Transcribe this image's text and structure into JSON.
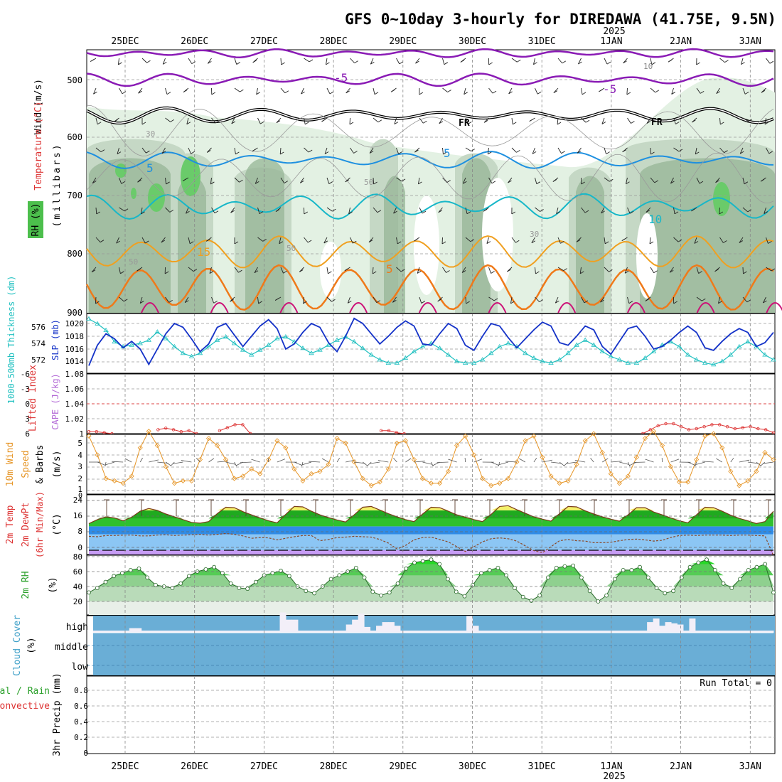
{
  "title": "GFS 0~10day 3-hourly for DIREDAWA (41.75E, 9.5N)",
  "year_label": "2025",
  "date_labels": [
    "25DEC",
    "26DEC",
    "27DEC",
    "28DEC",
    "29DEC",
    "30DEC",
    "31DEC",
    "1JAN",
    "2JAN",
    "3JAN"
  ],
  "run_total_label": "Run Total = 0",
  "colors": {
    "rh_light": "#e3f1e3",
    "rh_mid": "#c5d8c5",
    "rh_dark": "#95b595",
    "rh_green": "#6acb6a",
    "t_purple": "#8a1bb5",
    "t_black": "#000000",
    "t_blue": "#1e90e0",
    "t_cyan": "#17b7c8",
    "t_orange_light": "#f0a020",
    "t_orange": "#ef7a1a",
    "t_magenta": "#cc1177",
    "slp": "#1432c8",
    "thick": "#20c0c0",
    "li": "#dd3333",
    "wind": "#e69526",
    "temp_yellow": "#f3f06a",
    "temp_green": "#2fc02f",
    "dew_blue": "#2f8ce8",
    "freeze_purple": "#c79cf5",
    "rh2_green": "#26d926",
    "cloud": "#6aaed6"
  },
  "panels": {
    "upper": {
      "ylabel_wind": "Wind (m/s)",
      "ylabel_temp": "Temperature (°C)",
      "ylabel_mb": "(millibars)",
      "ylabel_rh": "RH (%)",
      "yticks": [
        "500",
        "600",
        "700",
        "800",
        "900"
      ],
      "contour_labels": [
        "10",
        "-5",
        "-5",
        "FR",
        "FR",
        "30",
        "5",
        "5",
        "50",
        "30",
        "50",
        "50",
        "10",
        "15",
        "5"
      ]
    },
    "slp": {
      "ylabel_thick": "1000-500mb Thickness (dm)",
      "ylabel_slp": "SLP (mb)",
      "left_ticks": [
        "576",
        "574",
        "572"
      ],
      "right_ticks": [
        "1020",
        "1018",
        "1016",
        "1014"
      ]
    },
    "li": {
      "ylabel_li": "Lifted Index",
      "ylabel_cape": "CAPE (J/kg)",
      "left_ticks": [
        "-6",
        "-3",
        "0",
        "3",
        "6"
      ],
      "right_ticks": [
        "1.08",
        "1.06",
        "1.04",
        "1.02",
        "1"
      ]
    },
    "wind10": {
      "ylabel_a": "10m Wind",
      "ylabel_b": "Speed",
      "ylabel_c": "& Barbs",
      "ylabel_unit": "(m/s)",
      "ticks": [
        "5",
        "4",
        "3",
        "2",
        "1",
        "0"
      ]
    },
    "temp2": {
      "ylabel_a": "2m Temp",
      "ylabel_b": "2m DewPt",
      "ylabel_c": "(6hr Min/Max)",
      "ylabel_unit": "(°C)",
      "ticks": [
        "24",
        "16",
        "8",
        "0"
      ]
    },
    "rh2": {
      "ylabel_a": "2m RH",
      "ylabel_unit": "(%)",
      "ticks": [
        "80",
        "60",
        "40",
        "20"
      ]
    },
    "cloud": {
      "ylabel_a": "Cloud Cover",
      "ylabel_unit": "(%)",
      "levels": [
        "high",
        "middle",
        "low"
      ]
    },
    "precip": {
      "ylabel_a": "Total / Rain",
      "ylabel_b": "Convective",
      "ylabel_c": "3hr Precip (mm)",
      "ticks": [
        "0.8",
        "0.6",
        "0.4",
        "0.2",
        "0"
      ]
    }
  },
  "chart_data": {
    "type": "line",
    "x_unit": "3-hourly steps from 25DEC 00Z",
    "slp_mb": [
      1013.4,
      1016.6,
      1018.4,
      1017.6,
      1016.2,
      1017.2,
      1016.0,
      1013.6,
      1016.0,
      1018.4,
      1020.0,
      1019.4,
      1017.6,
      1015.6,
      1016.8,
      1019.4,
      1020.0,
      1018.2,
      1016.4,
      1018.0,
      1019.6,
      1020.6,
      1019.2,
      1016.0,
      1016.8,
      1018.6,
      1020.0,
      1019.4,
      1017.0,
      1015.6,
      1018.0,
      1020.8,
      1020.0,
      1018.4,
      1016.8,
      1018.0,
      1019.4,
      1020.4,
      1019.6,
      1016.8,
      1016.6,
      1018.4,
      1020.0,
      1019.2,
      1016.6,
      1015.8,
      1018.0,
      1020.0,
      1019.6,
      1017.8,
      1016.2,
      1017.6,
      1019.0,
      1020.2,
      1019.6,
      1017.0,
      1016.6,
      1018.0,
      1019.6,
      1019.0,
      1016.4,
      1015.2,
      1017.2,
      1019.2,
      1019.6,
      1018.0,
      1016.0,
      1016.4,
      1017.4,
      1018.6,
      1019.6,
      1018.6,
      1016.2,
      1015.8,
      1017.2,
      1018.4,
      1019.2,
      1018.6,
      1016.4,
      1017.0,
      1018.6
    ],
    "thickness_dm": [
      577.0,
      576.4,
      575.6,
      574.2,
      573.6,
      573.8,
      574.0,
      574.4,
      575.4,
      574.6,
      573.6,
      572.8,
      572.4,
      572.8,
      573.6,
      574.4,
      574.8,
      574.0,
      573.2,
      572.6,
      573.2,
      573.8,
      574.6,
      574.8,
      574.2,
      573.4,
      572.8,
      573.2,
      573.8,
      574.4,
      574.8,
      574.2,
      573.4,
      572.6,
      572.0,
      571.6,
      571.6,
      572.2,
      573.0,
      573.6,
      574.0,
      573.4,
      572.6,
      571.8,
      571.6,
      571.6,
      572.0,
      572.8,
      573.6,
      574.0,
      573.6,
      572.8,
      572.2,
      571.8,
      571.6,
      572.0,
      572.8,
      573.8,
      574.4,
      573.8,
      573.0,
      572.4,
      572.0,
      571.6,
      571.6,
      572.2,
      573.0,
      573.8,
      574.2,
      573.6,
      572.6,
      572.0,
      571.6,
      571.4,
      571.8,
      572.6,
      573.6,
      574.2,
      573.6,
      572.6,
      572.0
    ],
    "wind10_ms": [
      4.8,
      3.2,
      1.2,
      1.0,
      0.8,
      1.4,
      3.8,
      5.2,
      4.0,
      2.2,
      0.8,
      1.0,
      1.0,
      2.8,
      4.6,
      4.0,
      2.8,
      1.2,
      1.4,
      2.0,
      1.6,
      2.8,
      4.4,
      3.8,
      2.0,
      1.0,
      1.6,
      1.8,
      2.4,
      4.6,
      4.2,
      2.6,
      1.2,
      0.6,
      0.9,
      2.0,
      4.2,
      4.4,
      2.8,
      1.2,
      0.8,
      0.8,
      1.8,
      4.0,
      4.8,
      3.2,
      1.2,
      0.6,
      0.8,
      1.2,
      2.6,
      4.4,
      4.8,
      3.0,
      1.4,
      0.8,
      1.0,
      2.4,
      4.4,
      5.0,
      3.4,
      1.6,
      0.8,
      1.4,
      3.0,
      4.6,
      5.2,
      4.0,
      2.2,
      0.9,
      0.9,
      2.8,
      4.8,
      5.0,
      3.8,
      1.8,
      0.6,
      1.0,
      1.8,
      3.4,
      2.8
    ],
    "temp2m_c": [
      13.4,
      15.4,
      16.8,
      16.2,
      14.8,
      16.6,
      19.6,
      21.0,
      20.0,
      18.2,
      16.8,
      15.4,
      14.0,
      13.6,
      14.4,
      18.4,
      21.6,
      21.4,
      19.4,
      17.8,
      16.2,
      14.8,
      13.8,
      18.0,
      22.0,
      21.8,
      19.6,
      17.8,
      16.4,
      15.2,
      14.2,
      17.8,
      21.6,
      22.0,
      20.2,
      18.4,
      16.8,
      15.4,
      14.4,
      18.2,
      21.6,
      21.4,
      19.6,
      17.8,
      16.6,
      15.4,
      14.4,
      18.0,
      22.0,
      22.4,
      20.4,
      18.6,
      16.8,
      15.6,
      14.6,
      18.4,
      22.0,
      21.8,
      19.8,
      18.2,
      16.8,
      15.6,
      14.6,
      17.8,
      21.4,
      21.4,
      19.2,
      17.8,
      16.2,
      14.8,
      13.8,
      17.8,
      21.6,
      21.4,
      19.6,
      17.6,
      16.0,
      14.8,
      13.4,
      14.4,
      19.6
    ],
    "dewpt2m_c": [
      7.0,
      6.8,
      7.4,
      7.4,
      7.6,
      7.6,
      7.2,
      7.2,
      7.6,
      7.8,
      7.4,
      7.6,
      7.8,
      8.0,
      7.6,
      8.0,
      8.4,
      8.0,
      7.2,
      6.0,
      6.4,
      6.2,
      5.2,
      6.0,
      6.8,
      7.4,
      7.4,
      4.8,
      5.4,
      6.4,
      6.6,
      7.0,
      6.8,
      6.6,
      5.4,
      3.6,
      0.6,
      2.4,
      5.2,
      6.4,
      6.6,
      5.4,
      4.2,
      1.8,
      -0.6,
      1.8,
      4.2,
      5.8,
      6.2,
      5.8,
      4.6,
      2.2,
      -0.2,
      -1.2,
      1.8,
      4.8,
      5.4,
      4.8,
      4.6,
      3.8,
      3.8,
      4.0,
      4.8,
      5.4,
      5.6,
      5.2,
      4.6,
      5.0,
      6.4,
      7.4,
      7.6,
      7.4,
      7.6,
      7.6,
      7.6,
      7.4,
      7.6,
      7.6,
      7.4,
      7.2,
      -2.8
    ],
    "rh2m_pct": [
      32,
      38,
      46,
      54,
      58,
      62,
      64,
      52,
      42,
      40,
      38,
      44,
      54,
      60,
      63,
      66,
      58,
      44,
      38,
      37,
      46,
      55,
      58,
      61,
      54,
      40,
      34,
      31,
      40,
      50,
      55,
      60,
      65,
      52,
      33,
      28,
      32,
      44,
      64,
      72,
      74,
      76,
      70,
      50,
      33,
      27,
      42,
      58,
      62,
      65,
      55,
      38,
      26,
      21,
      28,
      52,
      65,
      67,
      68,
      52,
      34,
      20,
      28,
      50,
      62,
      62,
      66,
      52,
      38,
      31,
      34,
      52,
      66,
      72,
      76,
      62,
      44,
      38,
      50,
      62,
      66,
      70,
      32
    ],
    "cloud_high_pct": [
      0,
      0,
      0,
      0,
      0,
      0,
      4,
      4,
      0,
      0,
      0,
      0,
      0,
      0,
      0,
      0,
      0,
      0,
      0,
      0,
      0,
      0,
      0,
      0,
      0,
      0,
      0,
      0,
      0,
      0,
      0,
      30,
      18,
      18,
      0,
      0,
      0,
      0,
      0,
      0,
      0,
      0,
      10,
      18,
      28,
      6,
      0,
      8,
      14,
      14,
      8,
      0,
      0,
      0,
      0,
      0,
      0,
      0,
      0,
      0,
      0,
      0,
      24,
      8,
      0,
      0,
      0,
      0,
      0,
      0,
      0,
      0,
      0,
      0,
      0,
      0,
      0,
      0,
      0,
      0,
      0,
      0,
      0,
      0,
      0,
      0,
      0,
      0,
      0,
      0,
      0,
      0,
      14,
      20,
      8,
      14,
      12,
      10,
      0,
      20,
      0,
      0,
      0,
      0,
      0,
      0,
      0,
      0,
      0,
      0,
      0,
      0,
      0
    ],
    "lifted_index_low": [
      5.6,
      5.6,
      5.8,
      6.0,
      0,
      0,
      0,
      0,
      0,
      5.2,
      4.9,
      5.2,
      5.6,
      5.4,
      6.0,
      0,
      0,
      5.4,
      4.8,
      4.2,
      4.2,
      6.0,
      0,
      0,
      0,
      0,
      0,
      0,
      0,
      0,
      0,
      0,
      0,
      0,
      0,
      0,
      0,
      0,
      5.4,
      5.4,
      5.8,
      6.0,
      0,
      0,
      0,
      0,
      0,
      0,
      0,
      0,
      0,
      0,
      0,
      0,
      0,
      0,
      0,
      0,
      0,
      0,
      0,
      0,
      0,
      0,
      0,
      0,
      0,
      0,
      0,
      0,
      0,
      0,
      6.0,
      5.2,
      4.4,
      4.0,
      4.0,
      4.6,
      5.2,
      5.0,
      4.6,
      4.2,
      4.2,
      4.6,
      5.0,
      4.8,
      4.6,
      5.0,
      5.2,
      5.8
    ],
    "precip_mm": []
  }
}
